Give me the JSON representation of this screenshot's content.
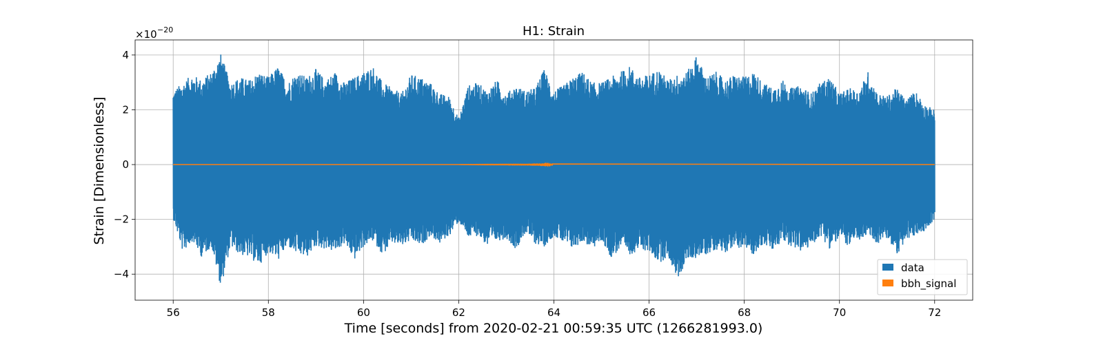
{
  "chart_data": {
    "type": "line",
    "title": "H1: Strain",
    "xlabel": "Time [seconds] from 2020-02-21 00:59:35 UTC (1266281993.0)",
    "ylabel": "Strain [Dimensionless]",
    "y_scale_base": "×10",
    "y_scale_exp": "−20",
    "xlim": [
      55.2,
      72.8
    ],
    "ylim": [
      -4.95,
      4.55
    ],
    "x_ticks": [
      56,
      58,
      60,
      62,
      64,
      66,
      68,
      70,
      72
    ],
    "x_tick_labels": [
      "56",
      "58",
      "60",
      "62",
      "64",
      "66",
      "68",
      "70",
      "72"
    ],
    "y_ticks": [
      -4,
      -2,
      0,
      2,
      4
    ],
    "y_tick_labels": [
      "−4",
      "−2",
      "0",
      "2",
      "4"
    ],
    "grid": true,
    "legend_position": "bottom-right",
    "series": [
      {
        "name": "data",
        "color": "#1f77b4",
        "x_range": [
          56,
          72
        ],
        "upper_envelope": [
          [
            56.0,
            2.7
          ],
          [
            56.2,
            3.0
          ],
          [
            56.4,
            3.3
          ],
          [
            56.6,
            3.1
          ],
          [
            56.8,
            3.4
          ],
          [
            57.0,
            4.05
          ],
          [
            57.2,
            3.0
          ],
          [
            57.4,
            3.2
          ],
          [
            57.6,
            3.1
          ],
          [
            57.8,
            3.4
          ],
          [
            58.0,
            3.2
          ],
          [
            58.2,
            3.6
          ],
          [
            58.4,
            3.0
          ],
          [
            58.6,
            3.4
          ],
          [
            58.8,
            3.2
          ],
          [
            59.0,
            3.5
          ],
          [
            59.2,
            3.1
          ],
          [
            59.4,
            3.4
          ],
          [
            59.6,
            3.0
          ],
          [
            59.8,
            3.2
          ],
          [
            60.0,
            3.4
          ],
          [
            60.2,
            3.6
          ],
          [
            60.4,
            3.0
          ],
          [
            60.6,
            2.8
          ],
          [
            60.8,
            2.6
          ],
          [
            61.0,
            3.3
          ],
          [
            61.2,
            3.2
          ],
          [
            61.4,
            3.0
          ],
          [
            61.6,
            2.6
          ],
          [
            61.8,
            2.5
          ],
          [
            62.0,
            1.7
          ],
          [
            62.2,
            2.9
          ],
          [
            62.4,
            3.0
          ],
          [
            62.6,
            2.7
          ],
          [
            62.8,
            3.1
          ],
          [
            63.0,
            2.6
          ],
          [
            63.2,
            2.9
          ],
          [
            63.4,
            2.7
          ],
          [
            63.6,
            2.8
          ],
          [
            63.8,
            3.5
          ],
          [
            64.0,
            2.7
          ],
          [
            64.2,
            2.9
          ],
          [
            64.4,
            3.2
          ],
          [
            64.6,
            3.4
          ],
          [
            64.8,
            3.0
          ],
          [
            65.0,
            3.0
          ],
          [
            65.2,
            3.2
          ],
          [
            65.4,
            3.4
          ],
          [
            65.6,
            3.6
          ],
          [
            65.8,
            3.2
          ],
          [
            66.0,
            3.3
          ],
          [
            66.2,
            3.5
          ],
          [
            66.4,
            3.1
          ],
          [
            66.6,
            3.3
          ],
          [
            66.8,
            3.4
          ],
          [
            67.0,
            4.0
          ],
          [
            67.2,
            3.2
          ],
          [
            67.4,
            3.4
          ],
          [
            67.6,
            3.1
          ],
          [
            67.8,
            3.3
          ],
          [
            68.0,
            3.2
          ],
          [
            68.2,
            3.4
          ],
          [
            68.4,
            3.0
          ],
          [
            68.6,
            2.8
          ],
          [
            68.8,
            3.1
          ],
          [
            69.0,
            2.8
          ],
          [
            69.2,
            2.9
          ],
          [
            69.4,
            2.6
          ],
          [
            69.6,
            3.0
          ],
          [
            69.8,
            3.2
          ],
          [
            70.0,
            2.6
          ],
          [
            70.2,
            2.8
          ],
          [
            70.4,
            2.7
          ],
          [
            70.6,
            3.4
          ],
          [
            70.8,
            2.6
          ],
          [
            71.0,
            2.5
          ],
          [
            71.2,
            2.8
          ],
          [
            71.4,
            2.4
          ],
          [
            71.6,
            2.7
          ],
          [
            71.8,
            2.2
          ],
          [
            72.0,
            2.0
          ]
        ],
        "lower_envelope": [
          [
            56.0,
            -2.0
          ],
          [
            56.2,
            -3.2
          ],
          [
            56.4,
            -2.8
          ],
          [
            56.6,
            -3.4
          ],
          [
            56.8,
            -3.0
          ],
          [
            57.0,
            -4.5
          ],
          [
            57.2,
            -3.0
          ],
          [
            57.4,
            -3.3
          ],
          [
            57.6,
            -3.4
          ],
          [
            57.8,
            -3.7
          ],
          [
            58.0,
            -3.2
          ],
          [
            58.2,
            -3.5
          ],
          [
            58.4,
            -3.0
          ],
          [
            58.6,
            -3.3
          ],
          [
            58.8,
            -3.4
          ],
          [
            59.0,
            -3.0
          ],
          [
            59.2,
            -3.1
          ],
          [
            59.4,
            -3.2
          ],
          [
            59.6,
            -2.9
          ],
          [
            59.8,
            -3.5
          ],
          [
            60.0,
            -3.0
          ],
          [
            60.2,
            -2.8
          ],
          [
            60.4,
            -3.3
          ],
          [
            60.6,
            -2.9
          ],
          [
            60.8,
            -3.0
          ],
          [
            61.0,
            -2.8
          ],
          [
            61.2,
            -3.0
          ],
          [
            61.4,
            -2.6
          ],
          [
            61.6,
            -2.9
          ],
          [
            61.8,
            -2.6
          ],
          [
            62.0,
            -2.1
          ],
          [
            62.2,
            -2.7
          ],
          [
            62.4,
            -2.6
          ],
          [
            62.6,
            -3.0
          ],
          [
            62.8,
            -2.8
          ],
          [
            63.0,
            -2.7
          ],
          [
            63.2,
            -3.1
          ],
          [
            63.4,
            -2.5
          ],
          [
            63.6,
            -2.9
          ],
          [
            63.8,
            -3.0
          ],
          [
            64.0,
            -2.6
          ],
          [
            64.2,
            -2.9
          ],
          [
            64.4,
            -3.1
          ],
          [
            64.6,
            -2.8
          ],
          [
            64.8,
            -3.1
          ],
          [
            65.0,
            -2.8
          ],
          [
            65.2,
            -3.4
          ],
          [
            65.4,
            -3.1
          ],
          [
            65.6,
            -3.3
          ],
          [
            65.8,
            -3.1
          ],
          [
            66.0,
            -3.2
          ],
          [
            66.2,
            -3.6
          ],
          [
            66.4,
            -3.4
          ],
          [
            66.6,
            -4.2
          ],
          [
            66.8,
            -3.5
          ],
          [
            67.0,
            -3.4
          ],
          [
            67.2,
            -3.3
          ],
          [
            67.4,
            -3.1
          ],
          [
            67.6,
            -3.2
          ],
          [
            67.8,
            -3.0
          ],
          [
            68.0,
            -3.1
          ],
          [
            68.2,
            -3.3
          ],
          [
            68.4,
            -2.9
          ],
          [
            68.6,
            -3.2
          ],
          [
            68.8,
            -2.8
          ],
          [
            69.0,
            -3.0
          ],
          [
            69.2,
            -3.2
          ],
          [
            69.4,
            -3.0
          ],
          [
            69.6,
            -2.6
          ],
          [
            69.8,
            -3.1
          ],
          [
            70.0,
            -2.7
          ],
          [
            70.2,
            -3.0
          ],
          [
            70.4,
            -2.8
          ],
          [
            70.6,
            -2.6
          ],
          [
            70.8,
            -2.9
          ],
          [
            71.0,
            -2.7
          ],
          [
            71.2,
            -3.3
          ],
          [
            71.4,
            -2.8
          ],
          [
            71.6,
            -2.6
          ],
          [
            71.8,
            -2.4
          ],
          [
            72.0,
            -2.0
          ]
        ]
      },
      {
        "name": "bbh_signal",
        "color": "#ff7f0e",
        "x_range": [
          56,
          72
        ],
        "chirp_start": 62.0,
        "merger_time": 63.97,
        "peak_amplitude": 0.06
      }
    ]
  }
}
